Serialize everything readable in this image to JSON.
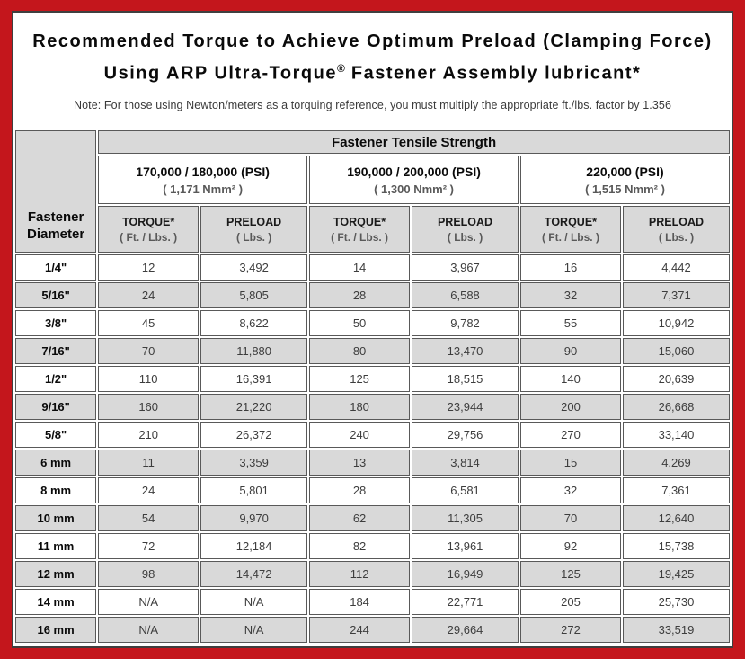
{
  "page": {
    "title_line1": "Recommended Torque to Achieve Optimum Preload (Clamping Force)",
    "title_line2_prefix": "Using ARP Ultra-Torque",
    "title_line2_reg": "®",
    "title_line2_suffix": " Fastener Assembly lubricant*",
    "note": "Note: For those using Newton/meters as a torquing reference, you must multiply the appropriate ft./lbs. factor by 1.356"
  },
  "colors": {
    "frame_red": "#c4161c",
    "cell_gray": "#d9d9d9",
    "cell_border_gray": "#595959",
    "value_text": "#3d3d3d"
  },
  "table": {
    "corner_header_line1": "Fastener",
    "corner_header_line2": "Diameter",
    "group_header": "Fastener Tensile Strength",
    "strength_groups": [
      {
        "psi": "170,000 / 180,000 (PSI)",
        "nmm": "( 1,171 Nmm² )"
      },
      {
        "psi": "190,000 / 200,000 (PSI)",
        "nmm": "( 1,300 Nmm² )"
      },
      {
        "psi": "220,000 (PSI)",
        "nmm": "( 1,515 Nmm² )"
      }
    ],
    "col_headers": [
      {
        "label": "TORQUE*",
        "unit": "( Ft. / Lbs. )"
      },
      {
        "label": "PRELOAD",
        "unit": "( Lbs. )"
      }
    ],
    "rows": [
      {
        "diameter": "1/4\"",
        "values": [
          "12",
          "3,492",
          "14",
          "3,967",
          "16",
          "4,442"
        ]
      },
      {
        "diameter": "5/16\"",
        "values": [
          "24",
          "5,805",
          "28",
          "6,588",
          "32",
          "7,371"
        ]
      },
      {
        "diameter": "3/8\"",
        "values": [
          "45",
          "8,622",
          "50",
          "9,782",
          "55",
          "10,942"
        ]
      },
      {
        "diameter": "7/16\"",
        "values": [
          "70",
          "11,880",
          "80",
          "13,470",
          "90",
          "15,060"
        ]
      },
      {
        "diameter": "1/2\"",
        "values": [
          "110",
          "16,391",
          "125",
          "18,515",
          "140",
          "20,639"
        ]
      },
      {
        "diameter": "9/16\"",
        "values": [
          "160",
          "21,220",
          "180",
          "23,944",
          "200",
          "26,668"
        ]
      },
      {
        "diameter": "5/8\"",
        "values": [
          "210",
          "26,372",
          "240",
          "29,756",
          "270",
          "33,140"
        ]
      },
      {
        "diameter": "6 mm",
        "values": [
          "11",
          "3,359",
          "13",
          "3,814",
          "15",
          "4,269"
        ]
      },
      {
        "diameter": "8 mm",
        "values": [
          "24",
          "5,801",
          "28",
          "6,581",
          "32",
          "7,361"
        ]
      },
      {
        "diameter": "10 mm",
        "values": [
          "54",
          "9,970",
          "62",
          "11,305",
          "70",
          "12,640"
        ]
      },
      {
        "diameter": "11 mm",
        "values": [
          "72",
          "12,184",
          "82",
          "13,961",
          "92",
          "15,738"
        ]
      },
      {
        "diameter": "12 mm",
        "values": [
          "98",
          "14,472",
          "112",
          "16,949",
          "125",
          "19,425"
        ]
      },
      {
        "diameter": "14 mm",
        "values": [
          "N/A",
          "N/A",
          "184",
          "22,771",
          "205",
          "25,730"
        ]
      },
      {
        "diameter": "16 mm",
        "values": [
          "N/A",
          "N/A",
          "244",
          "29,664",
          "272",
          "33,519"
        ]
      }
    ]
  }
}
